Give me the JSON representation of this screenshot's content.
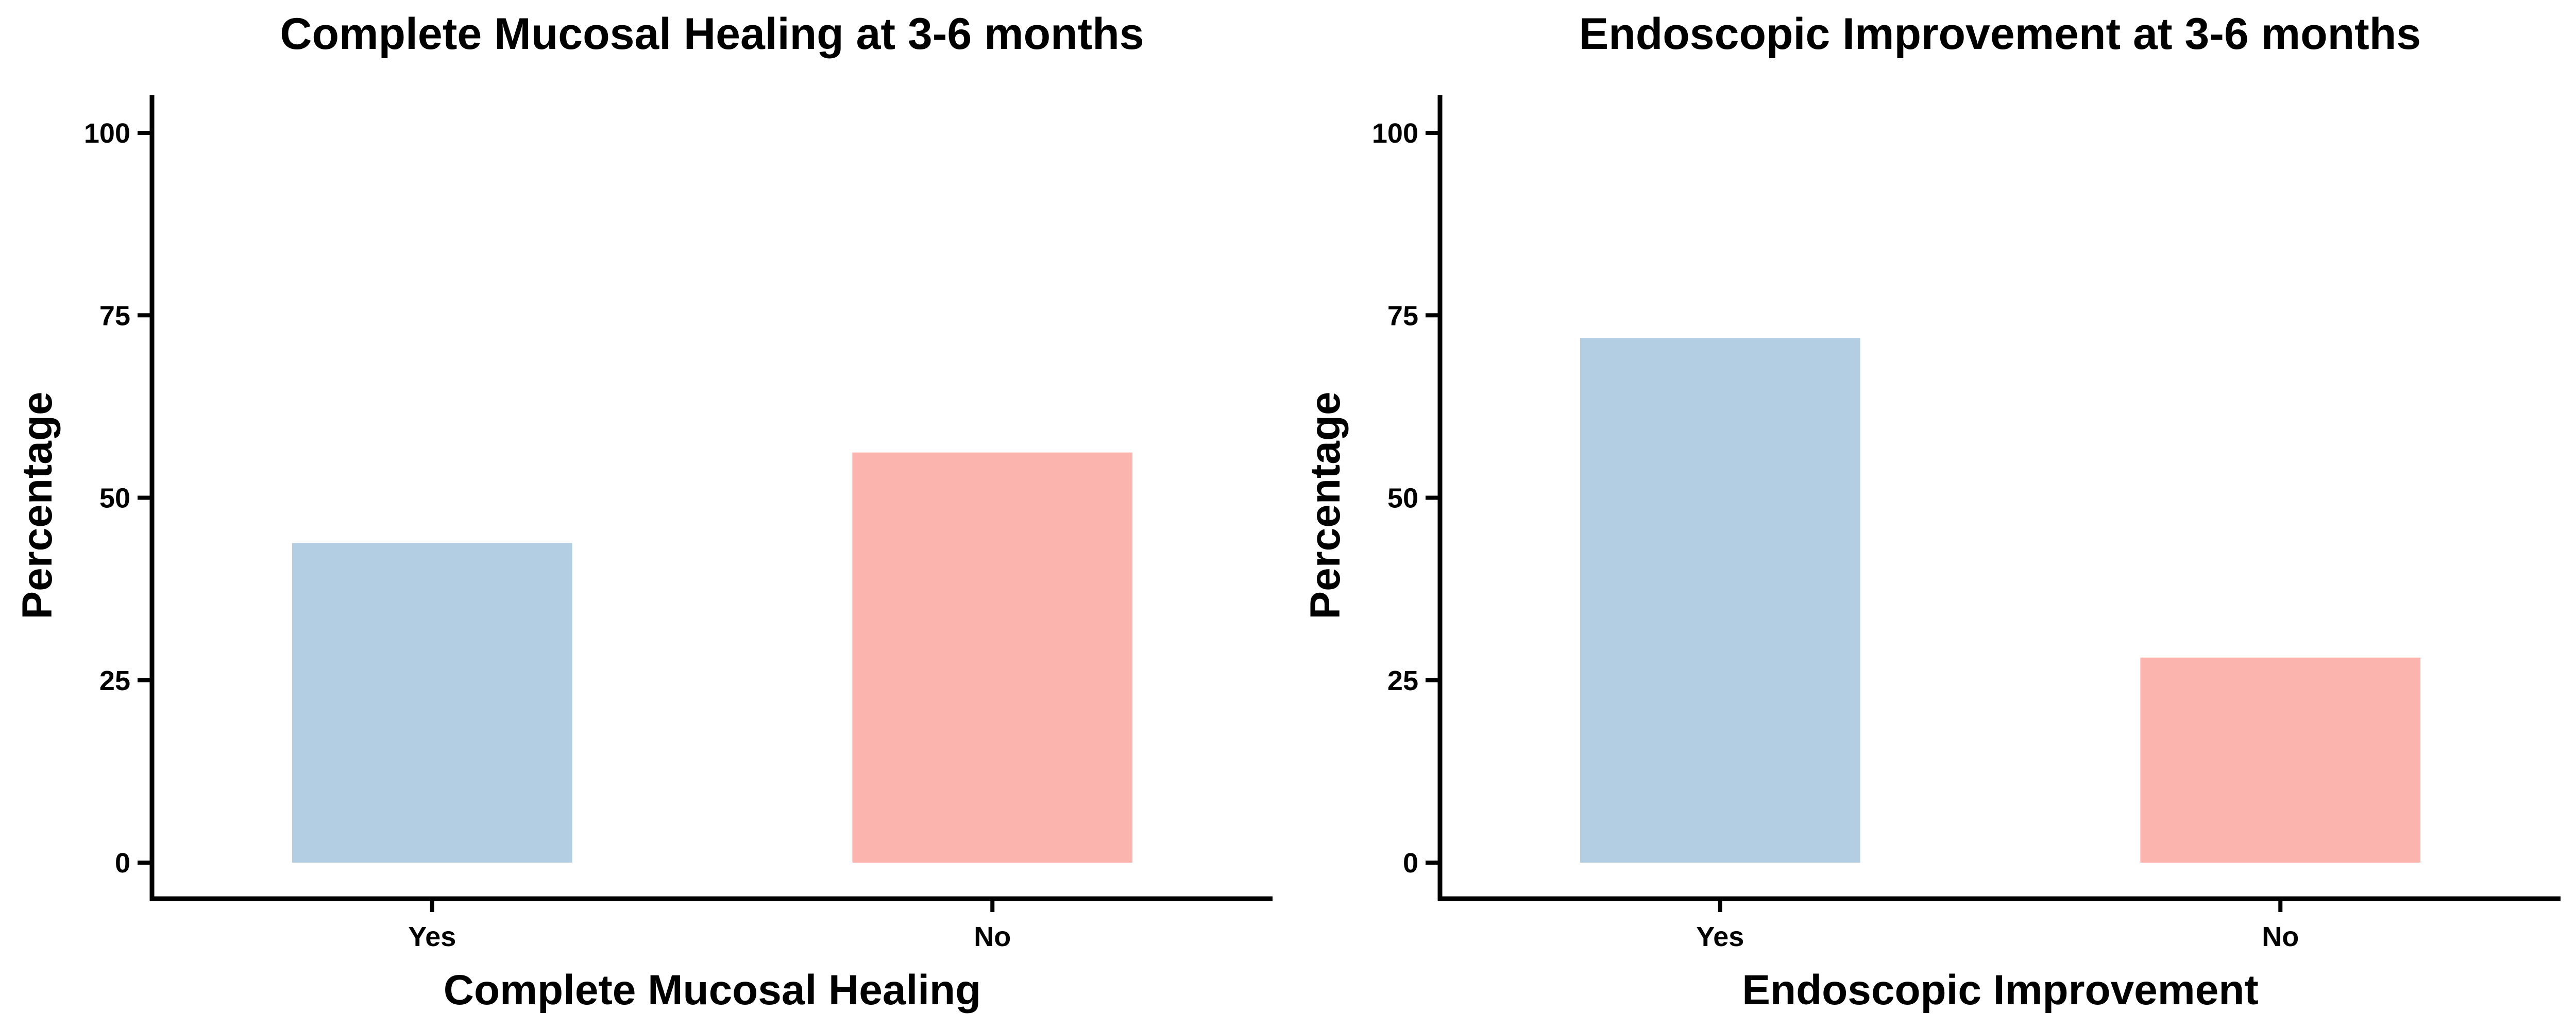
{
  "chart_data": [
    {
      "type": "bar",
      "title": "Complete Mucosal Healing at 3-6 months",
      "xlabel": "Complete Mucosal Healing",
      "ylabel": "Percentage",
      "categories": [
        "Yes",
        "No"
      ],
      "values": [
        43.8,
        56.2
      ],
      "colors": [
        "#b3cde3",
        "#fbb4ae"
      ],
      "ylim": [
        0,
        100
      ],
      "yticks": [
        0,
        25,
        50,
        75,
        100
      ],
      "grid": false,
      "legend": "none"
    },
    {
      "type": "bar",
      "title": "Endoscopic Improvement at 3-6 months",
      "xlabel": "Endoscopic Improvement",
      "ylabel": "Percentage",
      "categories": [
        "Yes",
        "No"
      ],
      "values": [
        71.9,
        28.1
      ],
      "colors": [
        "#b3cde3",
        "#fbb4ae"
      ],
      "ylim": [
        0,
        100
      ],
      "yticks": [
        0,
        25,
        50,
        75,
        100
      ],
      "grid": false,
      "legend": "none"
    }
  ]
}
